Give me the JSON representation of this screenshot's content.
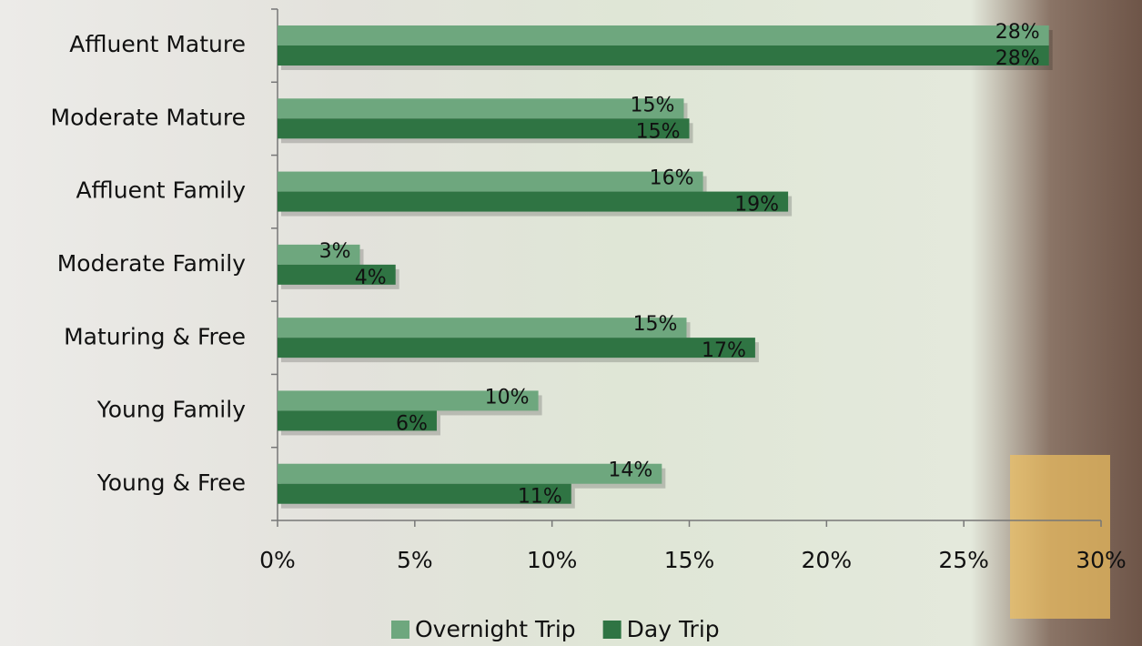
{
  "chart_data": {
    "type": "bar",
    "orientation": "horizontal",
    "categories": [
      "Affluent Mature",
      "Moderate Mature",
      "Affluent Family",
      "Moderate Family",
      "Maturing & Free",
      "Young Family",
      "Young & Free"
    ],
    "series": [
      {
        "name": "Overnight Trip",
        "color": "#6ea77e",
        "values": [
          28.1,
          14.8,
          15.5,
          3.0,
          14.9,
          9.5,
          14.0
        ],
        "value_labels": [
          "28%",
          "15%",
          "16%",
          "3%",
          "15%",
          "10%",
          "14%"
        ]
      },
      {
        "name": "Day Trip",
        "color": "#2f7443",
        "values": [
          28.1,
          15.0,
          18.6,
          4.3,
          17.4,
          5.8,
          10.7
        ],
        "value_labels": [
          "28%",
          "15%",
          "19%",
          "4%",
          "17%",
          "6%",
          "11%"
        ]
      }
    ],
    "xlim": [
      0,
      30
    ],
    "xticks": [
      {
        "value": 0,
        "label": "0%"
      },
      {
        "value": 5,
        "label": "5%"
      },
      {
        "value": 10,
        "label": "10%"
      },
      {
        "value": 15,
        "label": "15%"
      },
      {
        "value": 20,
        "label": "20%"
      },
      {
        "value": 25,
        "label": "25%"
      },
      {
        "value": 30,
        "label": "30%"
      }
    ],
    "legend": "bottom"
  }
}
